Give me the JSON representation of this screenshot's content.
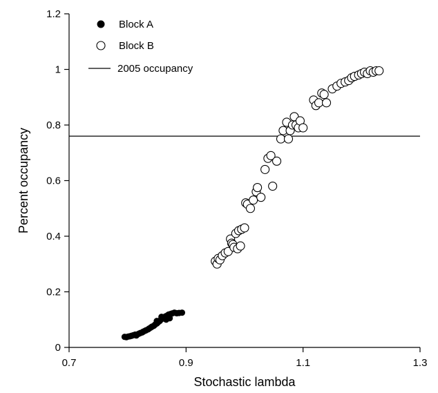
{
  "chart_data": {
    "type": "scatter",
    "title": "",
    "xlabel": "Stochastic lambda",
    "ylabel": "Percent occupancy",
    "xlim": [
      0.7,
      1.3
    ],
    "ylim": [
      0,
      1.2
    ],
    "x_ticks": [
      0.7,
      0.9,
      1.1,
      1.3
    ],
    "x_tick_labels": [
      "0.7",
      "0.9",
      "1.1",
      "1.3"
    ],
    "y_ticks": [
      0,
      0.2,
      0.4,
      0.6,
      0.8,
      1,
      1.2
    ],
    "y_tick_labels": [
      "0",
      "0.2",
      "0.4",
      "0.6",
      "0.8",
      "1",
      "1.2"
    ],
    "grid": false,
    "legend_position": "top-left",
    "legend": [
      {
        "label": "Block A",
        "marker": "filled-circle"
      },
      {
        "label": "Block B",
        "marker": "open-circle"
      },
      {
        "label": "2005 occupancy",
        "marker": "line"
      }
    ],
    "reference_line": {
      "name": "2005 occupancy",
      "y": 0.76
    },
    "series": [
      {
        "name": "Block A",
        "marker": "filled",
        "color": "#000000",
        "points": [
          [
            0.795,
            0.038
          ],
          [
            0.798,
            0.037
          ],
          [
            0.801,
            0.039
          ],
          [
            0.804,
            0.04
          ],
          [
            0.807,
            0.042
          ],
          [
            0.81,
            0.044
          ],
          [
            0.813,
            0.046
          ],
          [
            0.815,
            0.043
          ],
          [
            0.818,
            0.048
          ],
          [
            0.82,
            0.05
          ],
          [
            0.822,
            0.052
          ],
          [
            0.825,
            0.054
          ],
          [
            0.827,
            0.057
          ],
          [
            0.83,
            0.06
          ],
          [
            0.832,
            0.062
          ],
          [
            0.835,
            0.065
          ],
          [
            0.837,
            0.068
          ],
          [
            0.84,
            0.072
          ],
          [
            0.842,
            0.075
          ],
          [
            0.845,
            0.078
          ],
          [
            0.847,
            0.082
          ],
          [
            0.85,
            0.086
          ],
          [
            0.852,
            0.09
          ],
          [
            0.855,
            0.095
          ],
          [
            0.857,
            0.1
          ],
          [
            0.86,
            0.104
          ],
          [
            0.862,
            0.108
          ],
          [
            0.865,
            0.112
          ],
          [
            0.868,
            0.115
          ],
          [
            0.87,
            0.118
          ],
          [
            0.873,
            0.12
          ],
          [
            0.876,
            0.122
          ],
          [
            0.88,
            0.125
          ],
          [
            0.884,
            0.123
          ],
          [
            0.888,
            0.124
          ],
          [
            0.893,
            0.125
          ],
          [
            0.85,
            0.095
          ],
          [
            0.858,
            0.11
          ],
          [
            0.866,
            0.1
          ],
          [
            0.872,
            0.105
          ]
        ]
      },
      {
        "name": "Block B",
        "marker": "open",
        "color": "#000000",
        "points": [
          [
            0.95,
            0.31
          ],
          [
            0.953,
            0.3
          ],
          [
            0.955,
            0.32
          ],
          [
            0.958,
            0.315
          ],
          [
            0.962,
            0.33
          ],
          [
            0.967,
            0.34
          ],
          [
            0.972,
            0.345
          ],
          [
            0.976,
            0.39
          ],
          [
            0.978,
            0.375
          ],
          [
            0.98,
            0.37
          ],
          [
            0.982,
            0.36
          ],
          [
            0.985,
            0.41
          ],
          [
            0.988,
            0.355
          ],
          [
            0.99,
            0.42
          ],
          [
            0.993,
            0.365
          ],
          [
            0.995,
            0.425
          ],
          [
            1.0,
            0.43
          ],
          [
            1.002,
            0.52
          ],
          [
            1.005,
            0.515
          ],
          [
            1.01,
            0.5
          ],
          [
            1.015,
            0.53
          ],
          [
            1.02,
            0.56
          ],
          [
            1.022,
            0.575
          ],
          [
            1.028,
            0.54
          ],
          [
            1.035,
            0.64
          ],
          [
            1.04,
            0.68
          ],
          [
            1.045,
            0.69
          ],
          [
            1.048,
            0.58
          ],
          [
            1.055,
            0.67
          ],
          [
            1.062,
            0.75
          ],
          [
            1.066,
            0.78
          ],
          [
            1.072,
            0.81
          ],
          [
            1.075,
            0.75
          ],
          [
            1.078,
            0.78
          ],
          [
            1.082,
            0.8
          ],
          [
            1.085,
            0.83
          ],
          [
            1.088,
            0.8
          ],
          [
            1.092,
            0.79
          ],
          [
            1.095,
            0.815
          ],
          [
            1.1,
            0.79
          ],
          [
            1.118,
            0.89
          ],
          [
            1.122,
            0.87
          ],
          [
            1.127,
            0.88
          ],
          [
            1.132,
            0.915
          ],
          [
            1.136,
            0.91
          ],
          [
            1.14,
            0.88
          ],
          [
            1.15,
            0.93
          ],
          [
            1.158,
            0.94
          ],
          [
            1.165,
            0.95
          ],
          [
            1.172,
            0.955
          ],
          [
            1.178,
            0.96
          ],
          [
            1.183,
            0.97
          ],
          [
            1.188,
            0.975
          ],
          [
            1.195,
            0.98
          ],
          [
            1.2,
            0.985
          ],
          [
            1.205,
            0.99
          ],
          [
            1.21,
            0.985
          ],
          [
            1.215,
            0.995
          ],
          [
            1.22,
            0.99
          ],
          [
            1.225,
            0.995
          ],
          [
            1.23,
            0.995
          ]
        ]
      }
    ]
  }
}
